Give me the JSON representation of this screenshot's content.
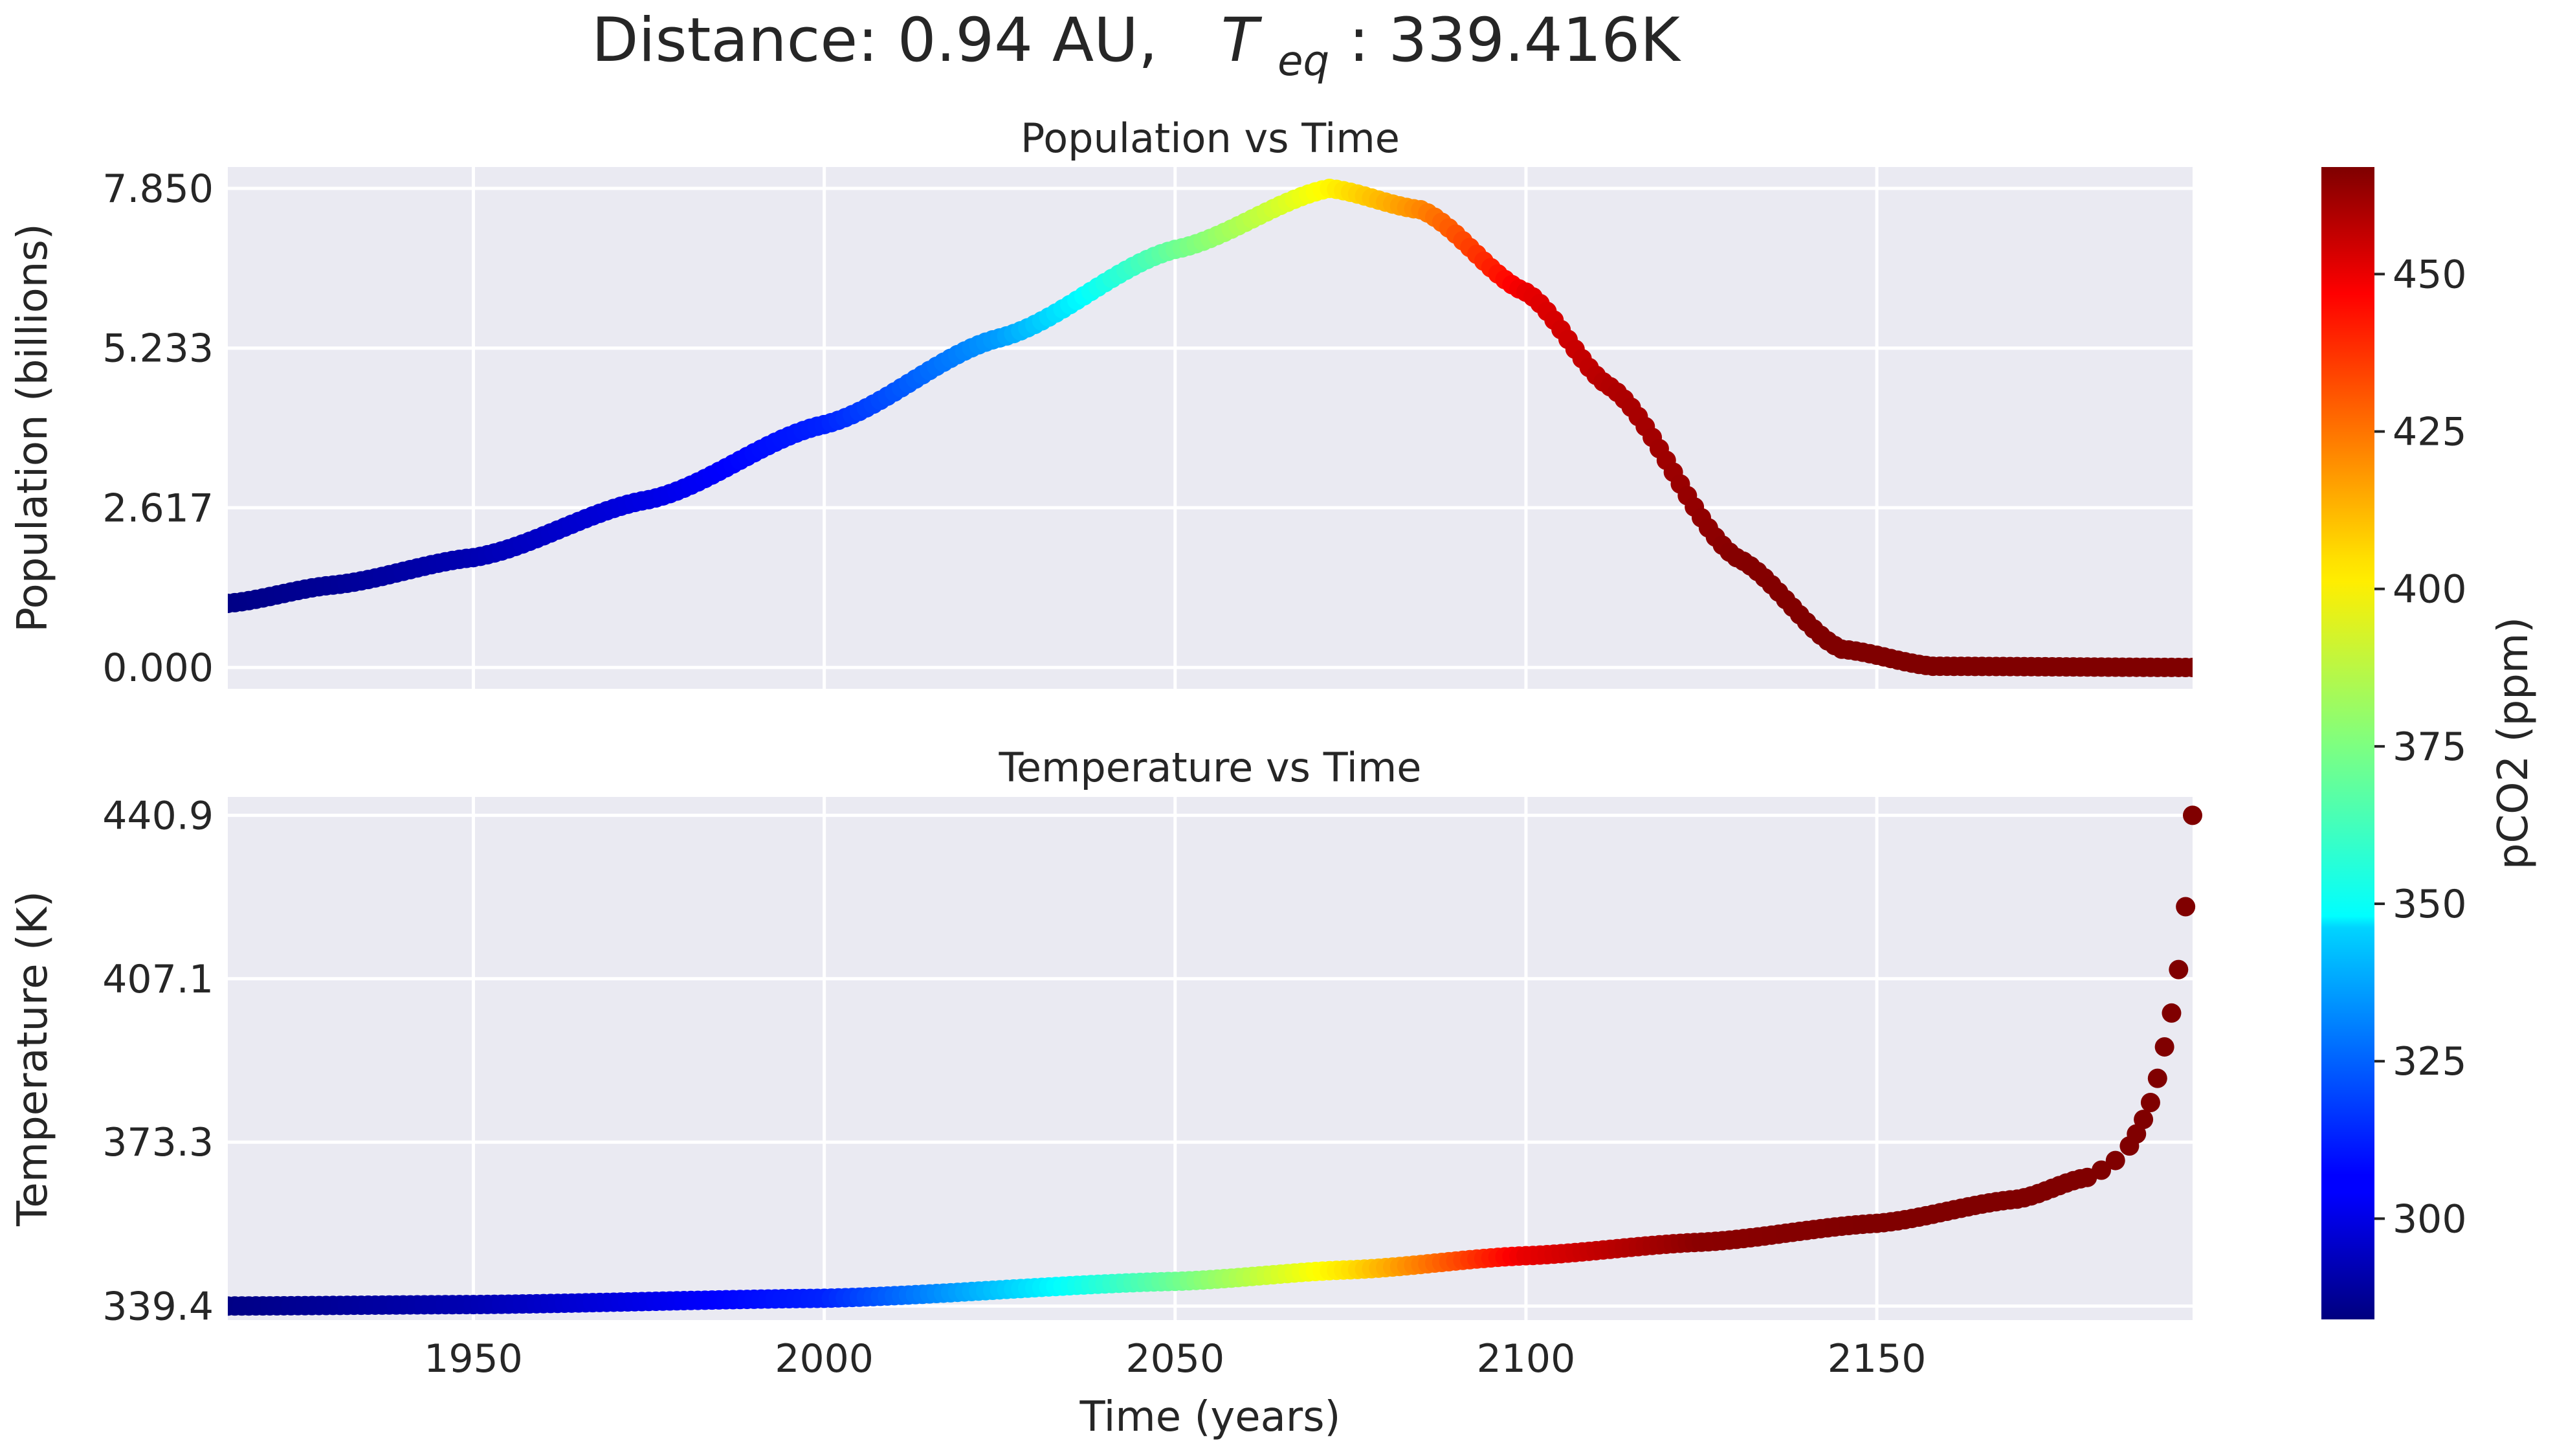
{
  "suptitle": {
    "prefix": "Distance: 0.94 AU,",
    "var_main": "T",
    "var_sub": "eq",
    "suffix": ": 339.416K"
  },
  "chart_data": [
    {
      "type": "scatter",
      "title": "Population vs Time",
      "xlabel": "",
      "ylabel": "Population (billions)",
      "xlim": [
        1915,
        2195
      ],
      "ylim": [
        -0.35,
        8.2
      ],
      "xticks": [
        1950,
        2000,
        2050,
        2100,
        2150
      ],
      "xtick_labels": [
        "",
        "",
        "",
        "",
        ""
      ],
      "yticks": [
        0.0,
        2.617,
        5.233,
        7.85
      ],
      "ytick_labels": [
        "0.000",
        "2.617",
        "5.233",
        "7.850"
      ],
      "grid": true,
      "x_range": [
        1915,
        2195
      ],
      "x_step": 1,
      "series": [
        {
          "color_by": "pCO2",
          "points": [
            {
              "x": 1915,
              "y": 1.05,
              "c": 285
            },
            {
              "x": 1930,
              "y": 1.35,
              "c": 288
            },
            {
              "x": 1950,
              "y": 1.8,
              "c": 293
            },
            {
              "x": 1975,
              "y": 2.75,
              "c": 302
            },
            {
              "x": 2000,
              "y": 3.98,
              "c": 313
            },
            {
              "x": 2025,
              "y": 5.4,
              "c": 335
            },
            {
              "x": 2050,
              "y": 6.85,
              "c": 372
            },
            {
              "x": 2072,
              "y": 7.85,
              "c": 400
            },
            {
              "x": 2085,
              "y": 7.5,
              "c": 420
            },
            {
              "x": 2100,
              "y": 6.15,
              "c": 448
            },
            {
              "x": 2112,
              "y": 4.6,
              "c": 458
            },
            {
              "x": 2130,
              "y": 1.8,
              "c": 466
            },
            {
              "x": 2145,
              "y": 0.3,
              "c": 467
            },
            {
              "x": 2158,
              "y": 0.02,
              "c": 467
            },
            {
              "x": 2195,
              "y": 0.0,
              "c": 467
            }
          ]
        }
      ]
    },
    {
      "type": "scatter",
      "title": "Temperature vs Time",
      "xlabel": "Time (years)",
      "ylabel": "Temperature (K)",
      "xlim": [
        1915,
        2195
      ],
      "ylim": [
        336.5,
        444.7
      ],
      "xticks": [
        1950,
        2000,
        2050,
        2100,
        2150
      ],
      "xtick_labels": [
        "1950",
        "2000",
        "2050",
        "2100",
        "2150"
      ],
      "yticks": [
        339.4,
        373.3,
        407.1,
        440.9
      ],
      "ytick_labels": [
        "339.4",
        "373.3",
        "407.1",
        "440.9"
      ],
      "grid": true,
      "x_range": [
        1915,
        2195
      ],
      "x_step": 1,
      "series": [
        {
          "color_by": "pCO2",
          "points": [
            {
              "x": 1915,
              "y": 339.4,
              "c": 285
            },
            {
              "x": 1950,
              "y": 339.7,
              "c": 293
            },
            {
              "x": 2000,
              "y": 341.0,
              "c": 313
            },
            {
              "x": 2050,
              "y": 344.5,
              "c": 372
            },
            {
              "x": 2075,
              "y": 346.9,
              "c": 404
            },
            {
              "x": 2100,
              "y": 349.8,
              "c": 448
            },
            {
              "x": 2125,
              "y": 352.6,
              "c": 465
            },
            {
              "x": 2150,
              "y": 356.5,
              "c": 467
            },
            {
              "x": 2170,
              "y": 361.5,
              "c": 467
            },
            {
              "x": 2180,
              "y": 366.0,
              "c": 467
            }
          ],
          "tail_points": [
            {
              "x": 2182,
              "y": 367.5,
              "c": 467
            },
            {
              "x": 2184,
              "y": 369.5,
              "c": 467
            },
            {
              "x": 2186,
              "y": 372.5,
              "c": 467
            },
            {
              "x": 2187,
              "y": 375.0,
              "c": 467
            },
            {
              "x": 2188,
              "y": 378.0,
              "c": 467
            },
            {
              "x": 2189,
              "y": 381.5,
              "c": 467
            },
            {
              "x": 2190,
              "y": 386.5,
              "c": 467
            },
            {
              "x": 2191,
              "y": 393.0,
              "c": 467
            },
            {
              "x": 2192,
              "y": 400.0,
              "c": 467
            },
            {
              "x": 2193,
              "y": 409.0,
              "c": 467
            },
            {
              "x": 2194,
              "y": 422.0,
              "c": 467
            },
            {
              "x": 2195,
              "y": 440.9,
              "c": 467
            }
          ]
        }
      ]
    }
  ],
  "colorbar": {
    "label": "pCO2 (ppm)",
    "colormap": "jet",
    "range": [
      284,
      467
    ],
    "ticks": [
      300,
      325,
      350,
      375,
      400,
      425,
      450
    ],
    "tick_labels": [
      "300",
      "325",
      "350",
      "375",
      "400",
      "425",
      "450"
    ]
  },
  "style": {
    "plot_background": "#EAEAF2",
    "grid_color": "#ffffff",
    "text_color": "#262626"
  }
}
